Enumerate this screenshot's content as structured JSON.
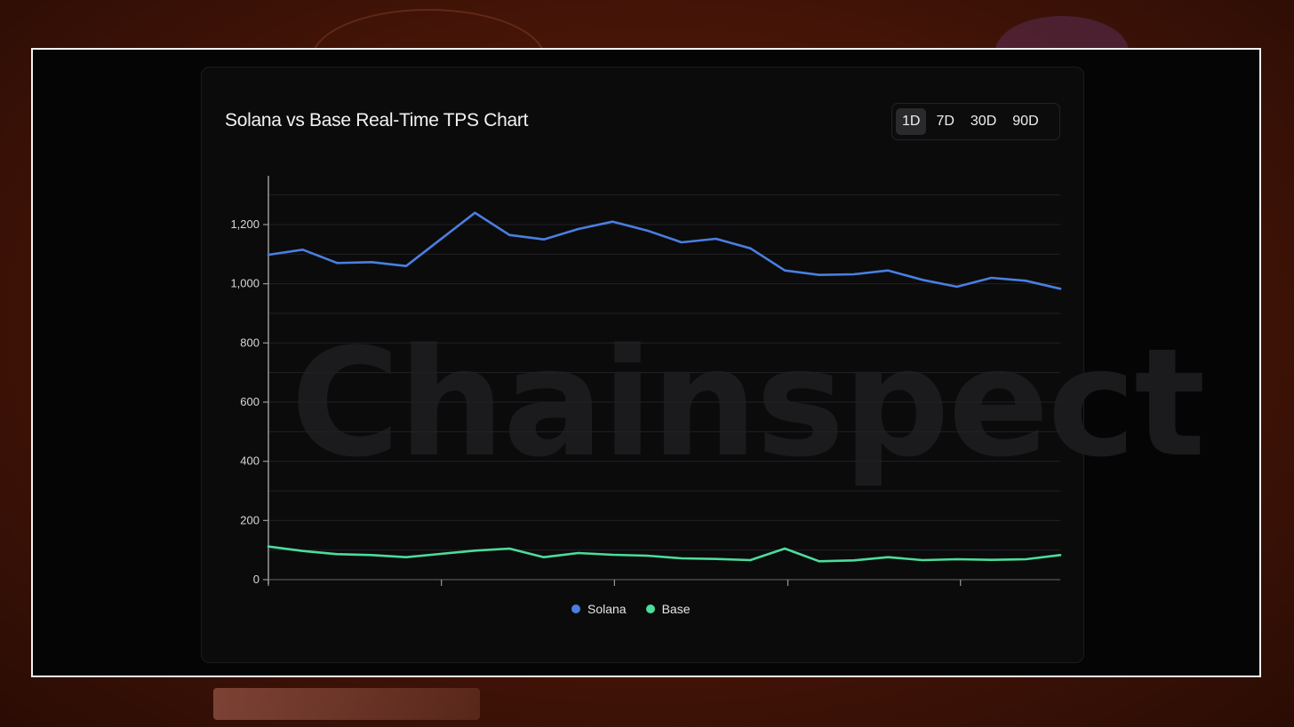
{
  "chart_card": {
    "title": "Solana vs Base Real-Time TPS Chart",
    "ranges": [
      "1D",
      "7D",
      "30D",
      "90D"
    ],
    "selected_range": "1D",
    "watermark": "Chainspect"
  },
  "colors": {
    "solana": "#4a7fe0",
    "base": "#4ddc9a",
    "grid": "#222226",
    "axis": "#9a9a9a"
  },
  "chart_data": {
    "type": "line",
    "title": "Solana vs Base Real-Time TPS Chart",
    "xlabel": "",
    "ylabel": "",
    "ylim": [
      0,
      1350
    ],
    "yticks": [
      0,
      200,
      400,
      600,
      800,
      1000,
      1200
    ],
    "ytick_labels": [
      "0",
      "200",
      "400",
      "600",
      "800",
      "1,000",
      "1,200"
    ],
    "grid": true,
    "legend_position": "bottom",
    "x": [
      0,
      1,
      2,
      3,
      4,
      5,
      6,
      7,
      8,
      9,
      10,
      11,
      12,
      13,
      14,
      15,
      16,
      17,
      18,
      19,
      20,
      21,
      22,
      23
    ],
    "series": [
      {
        "name": "Solana",
        "color": "#4a7fe0",
        "values": [
          1098,
          1115,
          1070,
          1073,
          1060,
          1150,
          1240,
          1165,
          1150,
          1185,
          1210,
          1180,
          1140,
          1152,
          1120,
          1045,
          1030,
          1032,
          1045,
          1013,
          990,
          1020,
          1010,
          983
        ]
      },
      {
        "name": "Base",
        "color": "#4ddc9a",
        "values": [
          112,
          97,
          86,
          83,
          76,
          87,
          98,
          105,
          76,
          90,
          84,
          81,
          72,
          70,
          66,
          105,
          62,
          65,
          76,
          66,
          69,
          67,
          69,
          83
        ]
      }
    ]
  }
}
